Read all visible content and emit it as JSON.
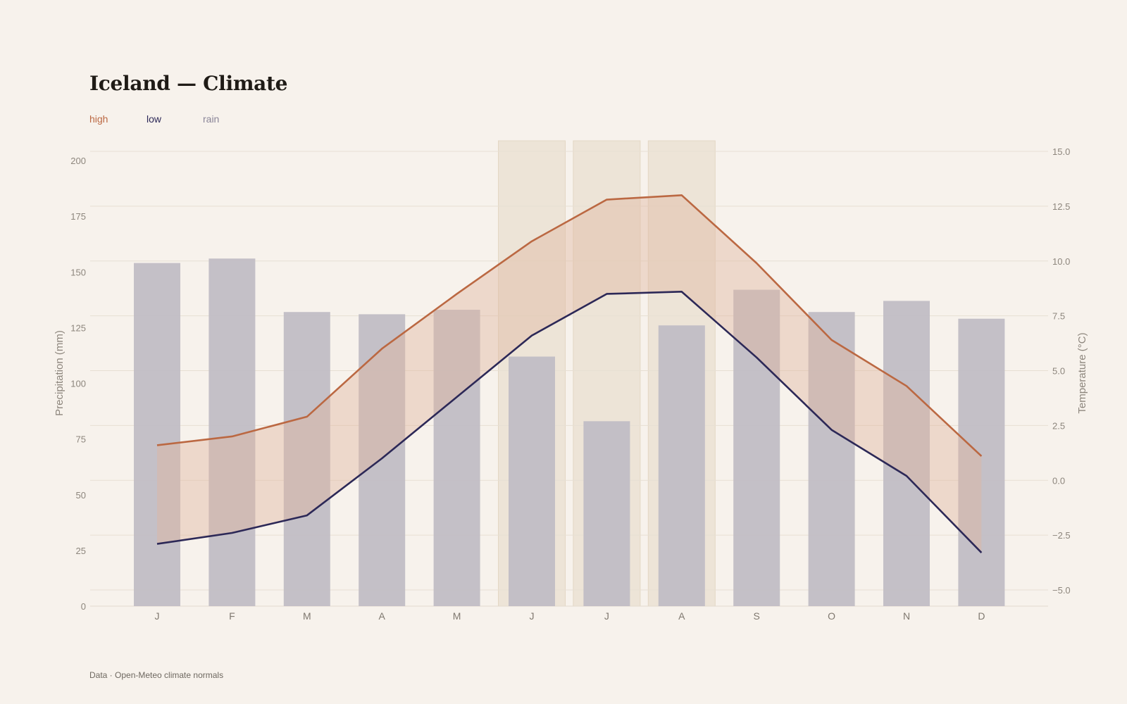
{
  "chart_data": {
    "type": "bar+line",
    "title": "Iceland — Climate",
    "legend": [
      {
        "key": "high",
        "label": "high",
        "color": "#bb6842"
      },
      {
        "key": "low",
        "label": "low",
        "color": "#2c2857"
      },
      {
        "key": "rain",
        "label": "rain",
        "color": "#8a8598"
      }
    ],
    "categories": [
      "J",
      "F",
      "M",
      "A",
      "M",
      "J",
      "J",
      "A",
      "S",
      "O",
      "N",
      "D"
    ],
    "highlight_months": [
      5,
      6,
      7
    ],
    "series": [
      {
        "name": "rain",
        "axis": "left",
        "type": "bar",
        "values": [
          154,
          156,
          132,
          131,
          133,
          112,
          83,
          126,
          142,
          132,
          137,
          129
        ]
      },
      {
        "name": "high",
        "axis": "right",
        "type": "line",
        "values": [
          1.6,
          2.0,
          2.9,
          6.0,
          8.5,
          10.9,
          12.8,
          13.0,
          9.9,
          6.4,
          4.3,
          1.1
        ]
      },
      {
        "name": "low",
        "axis": "right",
        "type": "line",
        "values": [
          -2.9,
          -2.4,
          -1.6,
          1.0,
          3.8,
          6.6,
          8.5,
          8.6,
          5.6,
          2.3,
          0.2,
          -3.3
        ]
      }
    ],
    "yleft": {
      "label": "Precipitation (mm)",
      "min": 0,
      "max": 200,
      "ticks": [
        0,
        25,
        50,
        75,
        100,
        125,
        150,
        175,
        200
      ]
    },
    "yright": {
      "label": "Temperature (°C)",
      "min": -5.0,
      "max": 15.0,
      "ticks": [
        -5.0,
        -2.5,
        0.0,
        2.5,
        5.0,
        7.5,
        10.0,
        12.5,
        15.0
      ],
      "tick_labels": [
        "−5.0",
        "−2.5",
        "0.0",
        "2.5",
        "5.0",
        "7.5",
        "10.0",
        "12.5",
        "15.0"
      ]
    },
    "colors": {
      "high": "#bb6842",
      "low": "#2c2857",
      "rain_bar": "#c1bdc5",
      "band": "#e0b69d",
      "highlight": "#ede4d7",
      "grid": "#e7dfd3"
    }
  },
  "footer": "Data · Open-Meteo climate normals"
}
